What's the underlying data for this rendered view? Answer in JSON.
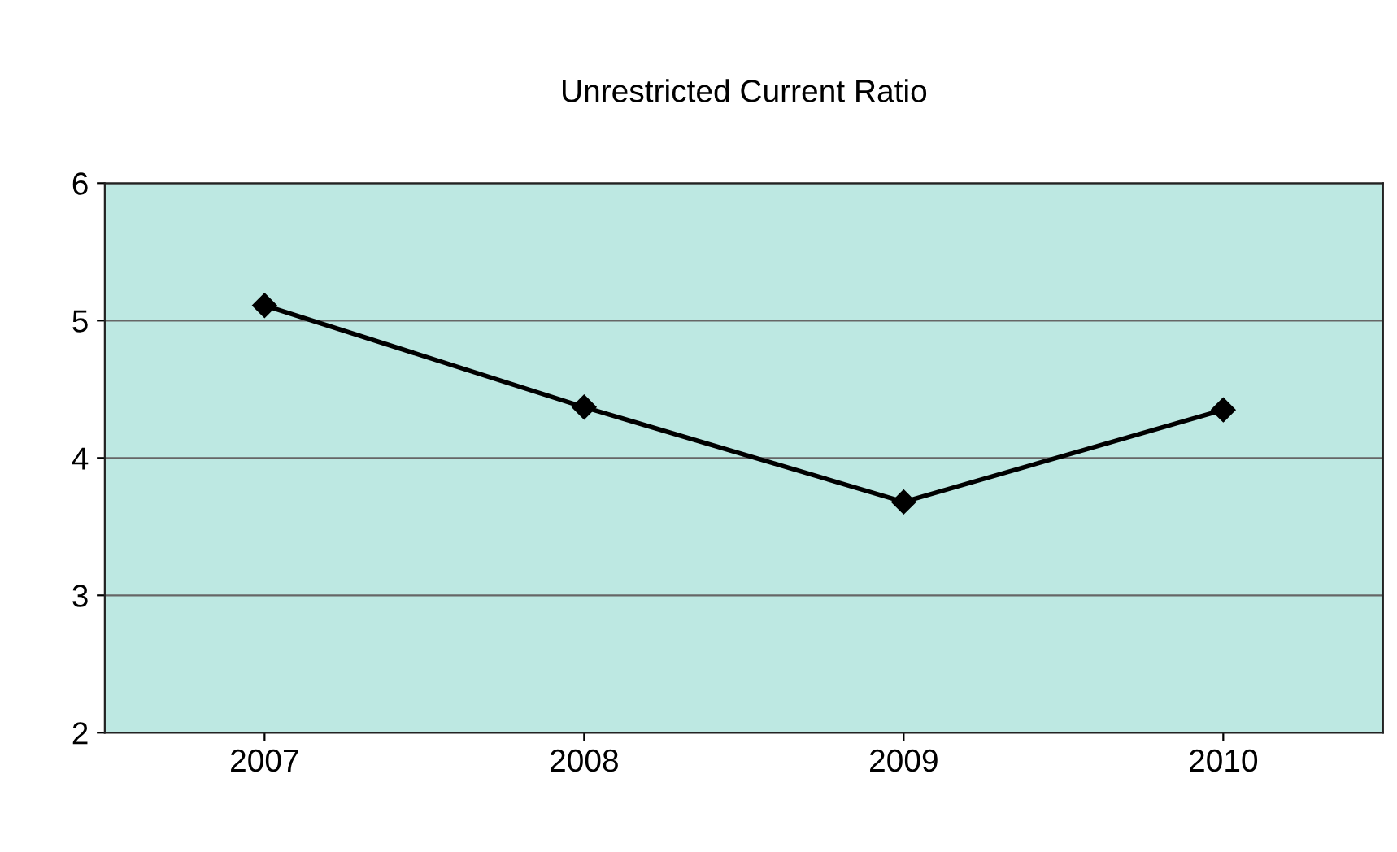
{
  "chart_data": {
    "type": "line",
    "title": "Unrestricted Current Ratio",
    "categories": [
      "2007",
      "2008",
      "2009",
      "2010"
    ],
    "series": [
      {
        "color": "#000000",
        "values": [
          5.11,
          4.37,
          3.68,
          4.35
        ]
      }
    ],
    "ylim": [
      2,
      6
    ],
    "yticks": [
      2,
      3,
      4,
      5,
      6
    ],
    "grid": "y",
    "marker": "diamond",
    "line_style": "solid"
  }
}
